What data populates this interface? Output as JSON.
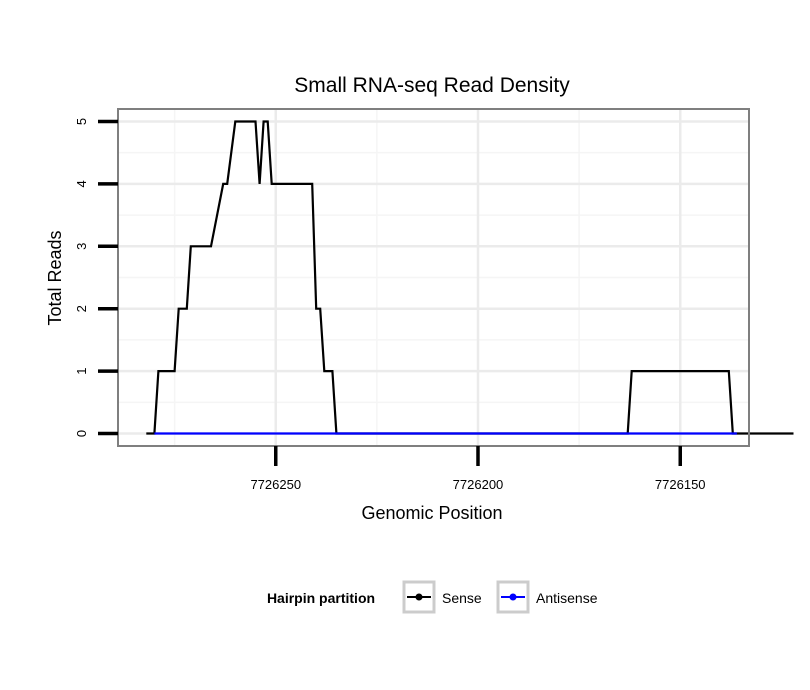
{
  "chart_data": {
    "type": "line",
    "title": "Small RNA-seq Read Density",
    "xlabel": "Genomic Position",
    "ylabel": "Total Reads",
    "x_reversed": true,
    "xlim": [
      7726289,
      7726133
    ],
    "ylim": [
      -0.2,
      5.2
    ],
    "x_ticks": [
      7726250,
      7726200,
      7726150
    ],
    "x_tick_labels": [
      "7726250",
      "7726200",
      "7726150"
    ],
    "y_ticks": [
      0,
      1,
      2,
      3,
      4,
      5
    ],
    "y_tick_labels": [
      "0",
      "1",
      "2",
      "3",
      "4",
      "5"
    ],
    "grid": true,
    "legend": {
      "title": "Hairpin partition",
      "position": "bottom",
      "entries": [
        "Sense",
        "Antisense"
      ]
    },
    "series": [
      {
        "name": "Sense",
        "color": "#000000",
        "x": [
          7726282,
          7726280,
          7726279,
          7726275,
          7726274,
          7726272,
          7726271,
          7726268,
          7726266,
          7726263,
          7726262,
          7726260,
          7726259,
          7726255,
          7726254,
          7726253,
          7726252,
          7726251,
          7726250,
          7726241,
          7726240,
          7726239,
          7726238,
          7726236,
          7726235,
          7726232,
          7726231,
          7726163,
          7726162,
          7726138,
          7726137,
          7726131,
          7726122
        ],
        "y": [
          0,
          0,
          1,
          1,
          2,
          2,
          3,
          3,
          3,
          4,
          4,
          5,
          5,
          5,
          4,
          5,
          5,
          4,
          4,
          4,
          2,
          2,
          1,
          1,
          0,
          0,
          0,
          0,
          1,
          1,
          0,
          0,
          0
        ]
      },
      {
        "name": "Antisense",
        "color": "#0000ff",
        "x": [
          7726280,
          7726232,
          7726162,
          7726136
        ],
        "y": [
          0,
          0,
          0,
          0
        ]
      }
    ]
  }
}
